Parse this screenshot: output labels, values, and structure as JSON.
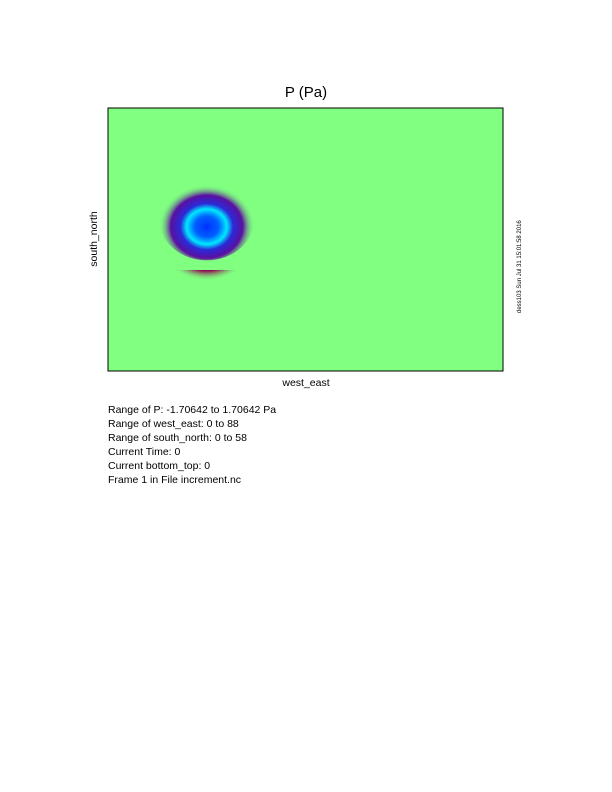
{
  "chart_data": {
    "type": "heatmap",
    "title": "P (Pa)",
    "xlabel": "west_east",
    "ylabel": "south_north",
    "xlim": [
      0,
      88
    ],
    "ylim": [
      0,
      58
    ],
    "zlim": [
      -1.70642,
      1.70642
    ],
    "background_value": 0,
    "colormap": [
      "#500078",
      "#0000ff",
      "#00ffff",
      "#80ff80",
      "#ffff00",
      "#ff0000",
      "#900050"
    ],
    "features": [
      {
        "kind": "minimum",
        "x": 22,
        "y": 35,
        "value": -1.70642
      },
      {
        "kind": "maximum",
        "x": 22,
        "y": 25,
        "value": 1.70642
      }
    ]
  },
  "info": {
    "lines": [
      "Range of P: -1.70642 to 1.70642 Pa",
      "Range of west_east: 0 to 88",
      "Range of south_north: 0 to 58",
      "Current Time: 0",
      "Current bottom_top: 0",
      "Frame 1 in File increment.nc"
    ]
  },
  "stamp": "dess103 Sun Jul 31 15:01:58 2016"
}
